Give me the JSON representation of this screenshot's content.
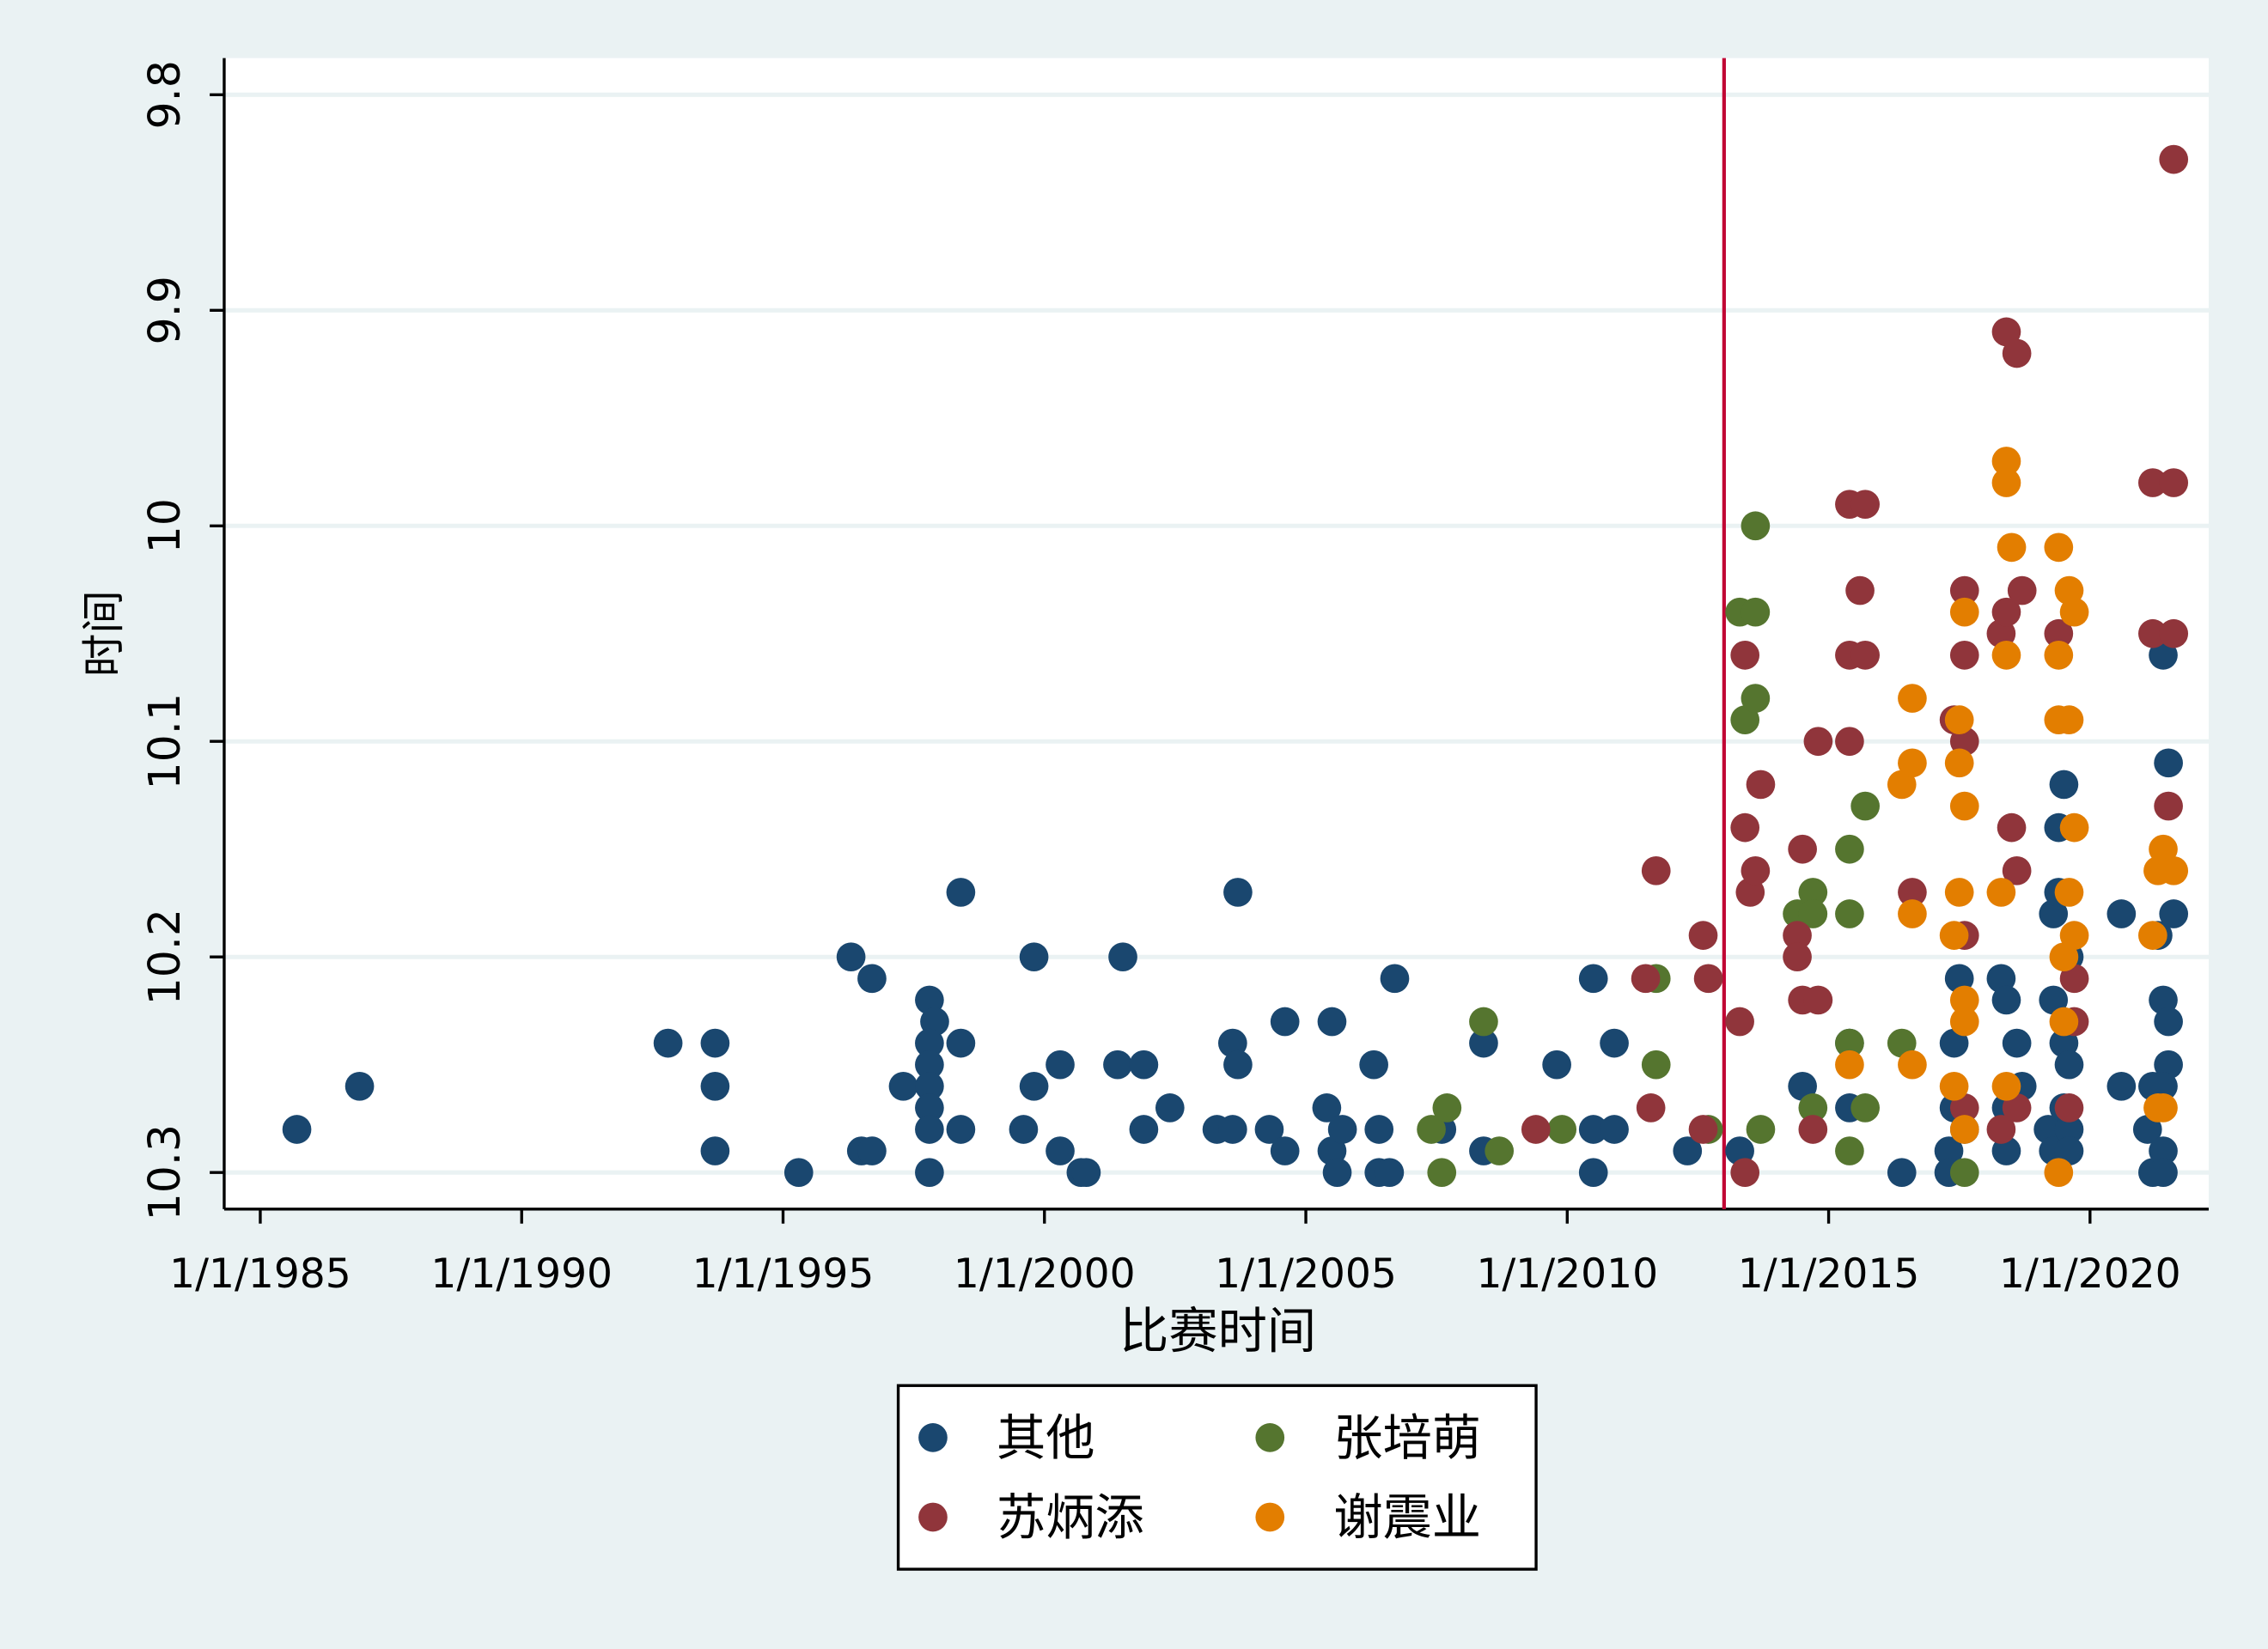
{
  "chart_data": {
    "type": "scatter",
    "x_label": "比赛时间",
    "y_label": "时间",
    "xlim": [
      1984.31,
      2022.27
    ],
    "xticks": [
      {
        "value": 1985,
        "label": "1/1/1985"
      },
      {
        "value": 1990,
        "label": "1/1/1990"
      },
      {
        "value": 1995,
        "label": "1/1/1995"
      },
      {
        "value": 2000,
        "label": "1/1/2000"
      },
      {
        "value": 2005,
        "label": "1/1/2005"
      },
      {
        "value": 2010,
        "label": "1/1/2010"
      },
      {
        "value": 2015,
        "label": "1/1/2015"
      },
      {
        "value": 2020,
        "label": "1/1/2020"
      }
    ],
    "ylim": [
      10.317,
      9.783
    ],
    "yticks": [
      9.8,
      9.9,
      10,
      10.1,
      10.2,
      10.3
    ],
    "grid": true,
    "vline": {
      "value": 2013.0,
      "color": "#c10534"
    },
    "series": [
      {
        "name": "其他",
        "color": "#1a476f",
        "x": [
          1985.7,
          1986.9,
          1992.8,
          1993.7,
          1993.7,
          1993.7,
          1995.3,
          1996.3,
          1996.5,
          1996.7,
          1996.7,
          1997.3,
          1997.8,
          1997.9,
          1997.8,
          1997.8,
          1997.8,
          1997.8,
          1997.8,
          1997.8,
          1998.4,
          1998.4,
          1998.4,
          1999.6,
          1999.8,
          1999.8,
          2000.3,
          2000.3,
          2000.7,
          2000.8,
          2001.5,
          2001.4,
          2001.9,
          2001.9,
          2002.4,
          2003.3,
          2003.6,
          2003.7,
          2003.7,
          2003.6,
          2004.3,
          2004.6,
          2004.6,
          2005.5,
          2005.4,
          2005.5,
          2005.6,
          2005.7,
          2006.3,
          2006.4,
          2006.4,
          2006.6,
          2006.7,
          2007.6,
          2008.4,
          2008.4,
          2009.8,
          2010.5,
          2010.5,
          2010.5,
          2010.9,
          2010.9,
          2012.3,
          2013.3,
          2014.5,
          2015.4,
          2015.4,
          2016.4,
          2017.3,
          2017.3,
          2017.4,
          2017.5,
          2017.4,
          2017.6,
          2018.3,
          2018.4,
          2018.4,
          2018.4,
          2018.6,
          2018.7,
          2019.2,
          2019.3,
          2019.3,
          2019.3,
          2019.4,
          2019.4,
          2019.5,
          2019.5,
          2019.5,
          2019.6,
          2019.6,
          2019.6,
          2019.6,
          2020.6,
          2020.6,
          2021.1,
          2021.2,
          2021.2,
          2021.3,
          2021.4,
          2021.5,
          2021.4,
          2021.5,
          2021.5,
          2021.4,
          2021.4,
          2021.4,
          2021.6
        ],
        "values": [
          10.28,
          10.26,
          10.24,
          10.24,
          10.26,
          10.29,
          10.3,
          10.2,
          10.29,
          10.21,
          10.29,
          10.26,
          10.22,
          10.23,
          10.24,
          10.25,
          10.26,
          10.27,
          10.28,
          10.3,
          10.17,
          10.24,
          10.28,
          10.28,
          10.2,
          10.26,
          10.25,
          10.29,
          10.3,
          10.3,
          10.2,
          10.25,
          10.25,
          10.28,
          10.27,
          10.28,
          10.24,
          10.17,
          10.25,
          10.28,
          10.28,
          10.23,
          10.29,
          10.23,
          10.27,
          10.29,
          10.3,
          10.28,
          10.25,
          10.28,
          10.3,
          10.3,
          10.21,
          10.28,
          10.29,
          10.24,
          10.25,
          10.21,
          10.28,
          10.3,
          10.24,
          10.28,
          10.29,
          10.29,
          10.26,
          10.24,
          10.27,
          10.3,
          10.29,
          10.3,
          10.24,
          10.21,
          10.27,
          10.28,
          10.21,
          10.22,
          10.27,
          10.29,
          10.24,
          10.26,
          10.28,
          10.18,
          10.22,
          10.29,
          10.17,
          10.14,
          10.12,
          10.24,
          10.27,
          10.2,
          10.25,
          10.28,
          10.29,
          10.18,
          10.26,
          10.28,
          10.3,
          10.26,
          10.19,
          10.06,
          10.11,
          10.22,
          10.23,
          10.25,
          10.26,
          10.29,
          10.3,
          10.18
        ]
      },
      {
        "name": "张培萌",
        "color": "#55752f",
        "x": [
          2007.4,
          2007.6,
          2007.7,
          2008.4,
          2008.7,
          2009.9,
          2011.7,
          2011.7,
          2012.7,
          2013.3,
          2013.6,
          2013.6,
          2013.4,
          2013.6,
          2013.7,
          2014.4,
          2014.7,
          2014.7,
          2014.7,
          2015.4,
          2015.4,
          2015.4,
          2015.4,
          2015.7,
          2015.7,
          2016.4,
          2017.6
        ],
        "values": [
          10.28,
          10.3,
          10.27,
          10.23,
          10.29,
          10.28,
          10.21,
          10.25,
          10.28,
          10.04,
          10.04,
          10.0,
          10.09,
          10.08,
          10.28,
          10.18,
          10.17,
          10.18,
          10.27,
          10.15,
          10.18,
          10.24,
          10.29,
          10.13,
          10.27,
          10.24,
          10.3
        ]
      },
      {
        "name": "苏炳添",
        "color": "#90353b",
        "x": [
          2009.4,
          2011.5,
          2011.6,
          2011.7,
          2012.6,
          2012.7,
          2012.6,
          2013.3,
          2013.4,
          2013.4,
          2013.4,
          2013.5,
          2013.6,
          2013.7,
          2014.4,
          2014.4,
          2014.5,
          2014.5,
          2014.8,
          2014.8,
          2014.7,
          2015.4,
          2015.7,
          2015.6,
          2015.4,
          2015.7,
          2015.4,
          2016.6,
          2017.4,
          2017.6,
          2017.6,
          2017.6,
          2017.6,
          2017.6,
          2018.3,
          2018.4,
          2018.4,
          2018.6,
          2018.7,
          2018.5,
          2018.6,
          2018.3,
          2018.6,
          2019.4,
          2019.6,
          2019.7,
          2019.7,
          2021.2,
          2021.6,
          2021.6,
          2021.2,
          2021.6,
          2021.5
        ],
        "values": [
          10.28,
          10.21,
          10.27,
          10.16,
          10.19,
          10.21,
          10.28,
          10.23,
          10.06,
          10.14,
          10.3,
          10.17,
          10.16,
          10.12,
          10.19,
          10.2,
          10.15,
          10.22,
          10.1,
          10.22,
          10.28,
          9.99,
          9.99,
          10.03,
          10.06,
          10.06,
          10.1,
          10.17,
          10.09,
          10.03,
          10.06,
          10.1,
          10.19,
          10.27,
          10.05,
          10.04,
          9.91,
          9.92,
          10.03,
          10.14,
          10.16,
          10.28,
          10.27,
          10.05,
          10.27,
          10.21,
          10.23,
          9.98,
          9.98,
          9.83,
          10.05,
          10.05,
          10.13
        ]
      },
      {
        "name": "谢震业",
        "color": "#e37e00",
        "x": [
          2016.4,
          2016.6,
          2016.6,
          2016.6,
          2015.4,
          2016.6,
          2017.5,
          2017.5,
          2017.6,
          2017.5,
          2017.4,
          2017.6,
          2017.6,
          2017.6,
          2017.4,
          2017.6,
          2018.4,
          2018.4,
          2018.5,
          2018.4,
          2018.3,
          2018.4,
          2019.4,
          2019.6,
          2019.7,
          2019.4,
          2019.4,
          2019.6,
          2019.7,
          2019.6,
          2019.7,
          2019.5,
          2019.5,
          2019.4,
          2021.2,
          2021.4,
          2021.3,
          2021.6,
          2021.3,
          2021.4
        ],
        "values": [
          10.12,
          10.08,
          10.11,
          10.18,
          10.25,
          10.25,
          10.09,
          10.11,
          10.13,
          10.17,
          10.19,
          10.04,
          10.22,
          10.23,
          10.26,
          10.28,
          9.97,
          9.98,
          10.01,
          10.06,
          10.17,
          10.26,
          10.01,
          10.03,
          10.04,
          10.06,
          10.09,
          10.09,
          10.14,
          10.17,
          10.19,
          10.2,
          10.23,
          10.3,
          10.19,
          10.15,
          10.16,
          10.16,
          10.27,
          10.27
        ]
      }
    ]
  }
}
